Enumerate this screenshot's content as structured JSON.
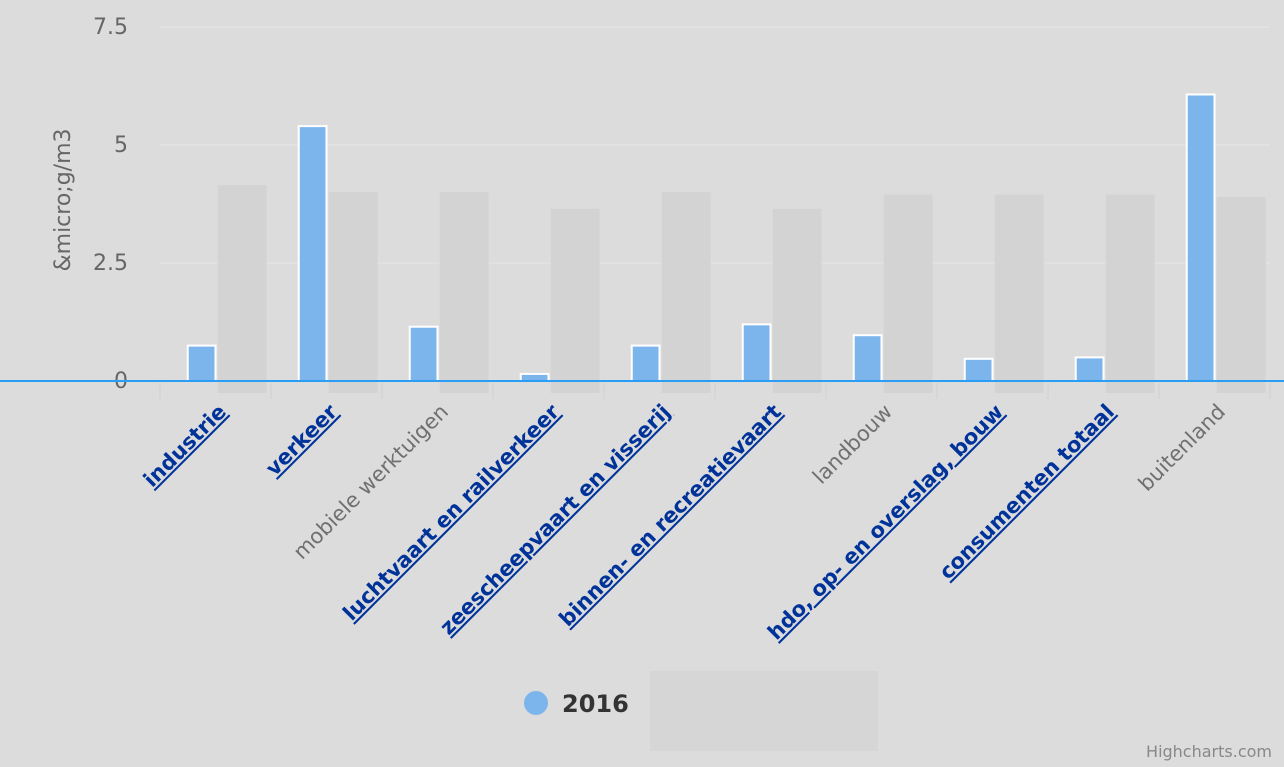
{
  "chart_data": {
    "type": "bar",
    "ylabel": "&micro;g/m3",
    "ylim": [
      0,
      7.5
    ],
    "yticks": [
      {
        "value": 0,
        "label": "0"
      },
      {
        "value": 2.5,
        "label": "2.5"
      },
      {
        "value": 5,
        "label": "5"
      },
      {
        "value": 7.5,
        "label": "7.5"
      }
    ],
    "grid": true,
    "legend_position": "bottom-center",
    "categories": [
      {
        "label": "industrie",
        "link": true
      },
      {
        "label": "verkeer",
        "link": true
      },
      {
        "label": "mobiele werktuigen",
        "link": false
      },
      {
        "label": "luchtvaart en railverkeer",
        "link": true
      },
      {
        "label": "zeescheepvaart en visserij",
        "link": true
      },
      {
        "label": "binnen- en recreatievaart",
        "link": true
      },
      {
        "label": "landbouw",
        "link": false
      },
      {
        "label": "hdo, op- en overslag, bouw",
        "link": true
      },
      {
        "label": "consumenten totaal",
        "link": true
      },
      {
        "label": "buitenland",
        "link": false
      }
    ],
    "series": [
      {
        "name": "2016",
        "color": "#7cb5ec",
        "values": [
          0.75,
          5.4,
          1.15,
          0.15,
          0.75,
          1.2,
          0.97,
          0.47,
          0.5,
          6.07
        ]
      }
    ],
    "background_values": [
      4.15,
      4.0,
      4.0,
      3.65,
      4.0,
      3.65,
      3.95,
      3.95,
      3.95,
      3.9
    ],
    "background_color": "#d3d3d3",
    "zero_line_color": "#2a9df4"
  },
  "credits": "Highcharts.com"
}
